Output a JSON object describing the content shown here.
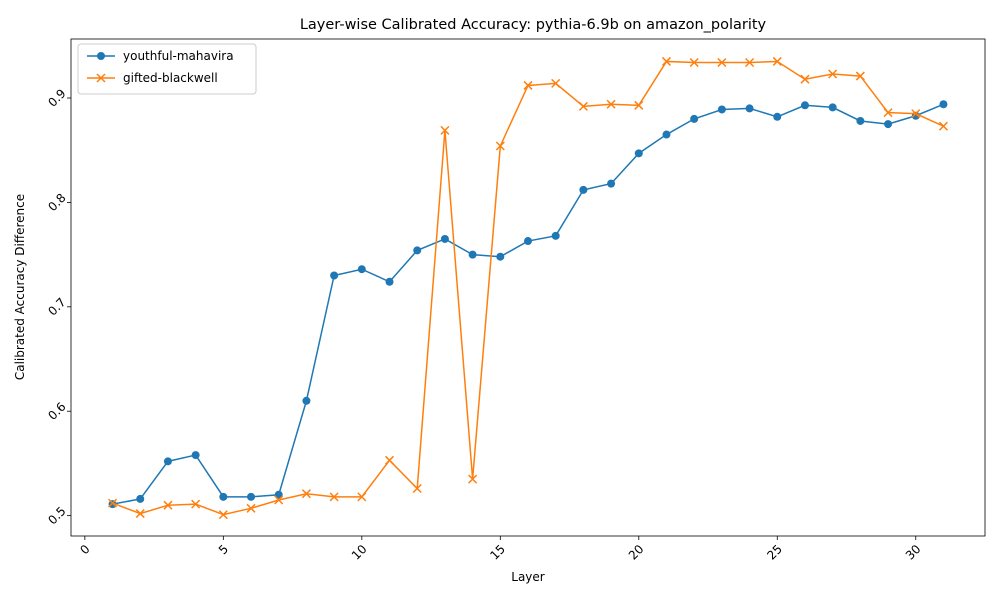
{
  "chart_data": {
    "type": "line",
    "title": "Layer-wise Calibrated Accuracy: pythia-6.9b on amazon_polarity",
    "xlabel": "Layer",
    "ylabel": "Calibrated Accuracy Difference",
    "xlim": [
      -0.5,
      32.5
    ],
    "ylim": [
      0.4805,
      0.9565
    ],
    "xticks": [
      0,
      5,
      10,
      15,
      20,
      25,
      30
    ],
    "yticks": [
      0.5,
      0.6,
      0.7,
      0.8,
      0.9
    ],
    "xtick_labels": [
      "0",
      "5",
      "10",
      "15",
      "20",
      "25",
      "30"
    ],
    "ytick_labels": [
      "0.5",
      "0.6",
      "0.7",
      "0.8",
      "0.9"
    ],
    "grid": false,
    "legend_position": "top-left",
    "x": [
      1,
      2,
      3,
      4,
      5,
      6,
      7,
      8,
      9,
      10,
      11,
      12,
      13,
      14,
      15,
      16,
      17,
      18,
      19,
      20,
      21,
      22,
      23,
      24,
      25,
      26,
      27,
      28,
      29,
      30,
      31
    ],
    "series": [
      {
        "name": "youthful-mahavira",
        "color": "#1f77b4",
        "marker": "circle",
        "values": [
          0.511,
          0.516,
          0.552,
          0.558,
          0.518,
          0.518,
          0.52,
          0.61,
          0.73,
          0.736,
          0.724,
          0.754,
          0.765,
          0.75,
          0.748,
          0.763,
          0.768,
          0.812,
          0.818,
          0.847,
          0.865,
          0.88,
          0.889,
          0.89,
          0.882,
          0.893,
          0.891,
          0.878,
          0.875,
          0.883,
          0.894
        ]
      },
      {
        "name": "gifted-blackwell",
        "color": "#ff7f0e",
        "marker": "x",
        "values": [
          0.512,
          0.502,
          0.51,
          0.511,
          0.501,
          0.507,
          0.515,
          0.521,
          0.518,
          0.518,
          0.553,
          0.526,
          0.869,
          0.535,
          0.854,
          0.912,
          0.914,
          0.892,
          0.894,
          0.893,
          0.935,
          0.934,
          0.934,
          0.934,
          0.935,
          0.918,
          0.923,
          0.921,
          0.886,
          0.885,
          0.873
        ]
      }
    ]
  }
}
